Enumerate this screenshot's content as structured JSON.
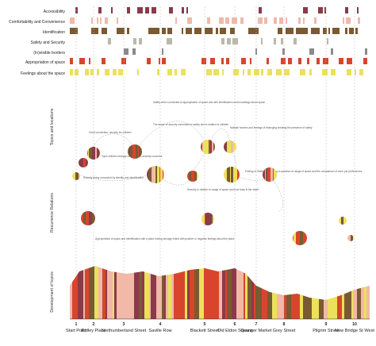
{
  "topics": {
    "rows": [
      {
        "label": "Accessibility",
        "color": "#8b3a4a"
      },
      {
        "label": "Comfortability and Convenience",
        "color": "#f2b8a8"
      },
      {
        "label": "Identification",
        "color": "#7a5a32"
      },
      {
        "label": "Safety and Security",
        "color": "#b9b9a8"
      },
      {
        "label": "(In)visible borders",
        "color": "#8a8a8a"
      },
      {
        "label": "Appropriation of space",
        "color": "#d8452c"
      },
      {
        "label": "Feelings about the space",
        "color": "#ece15a"
      }
    ],
    "section_label": "Topics and locations"
  },
  "sections": {
    "recurrence": "Recurrence Relations",
    "development": "Development of topics"
  },
  "annotations": [
    "Safety when connected to appropriation of space and with identification and knowledge about space",
    "Good connection, security for children",
    "Topic children strongly connected to security concerns",
    "Security being connected by identity and identification",
    "The sense of security connected to safety and in relation to children",
    "Security in relation to usage of space and how busy is the street",
    "Appropriation of space and identification with a place having strongly linked with positive or negative feelings about the place",
    "Multiple borders and feelings of belonging creating the presence of safety",
    "Feeling of Safety culminating to question of usage of space and the comparison of more per preferences"
  ],
  "locations": [
    {
      "num": "1",
      "name": "Start Point"
    },
    {
      "num": "2",
      "name": "Ridley Place"
    },
    {
      "num": "3",
      "name": "Northumberland Street"
    },
    {
      "num": "4",
      "name": "Saville Row"
    },
    {
      "num": "5",
      "name": "Blackett Street"
    },
    {
      "num": "6",
      "name": "Old Eldon Square"
    },
    {
      "num": "7",
      "name": "Granger Market"
    },
    {
      "num": "8",
      "name": "Grey Street"
    },
    {
      "num": "9",
      "name": "Pilgrim Street"
    },
    {
      "num": "10",
      "name": "New Bridge St West"
    }
  ]
}
